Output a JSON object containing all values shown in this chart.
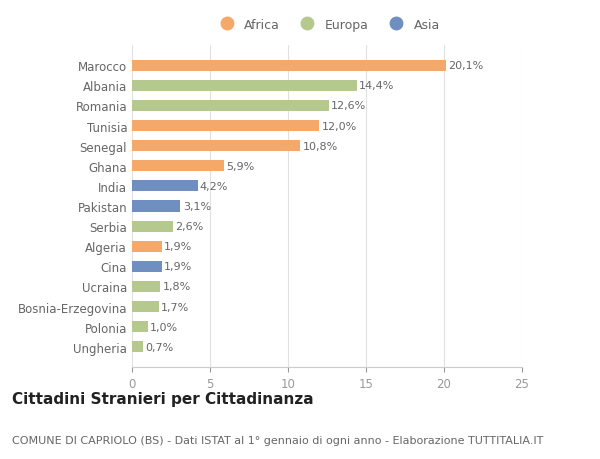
{
  "categories": [
    "Ungheria",
    "Polonia",
    "Bosnia-Erzegovina",
    "Ucraina",
    "Cina",
    "Algeria",
    "Serbia",
    "Pakistan",
    "India",
    "Ghana",
    "Senegal",
    "Tunisia",
    "Romania",
    "Albania",
    "Marocco"
  ],
  "values": [
    0.7,
    1.0,
    1.7,
    1.8,
    1.9,
    1.9,
    2.6,
    3.1,
    4.2,
    5.9,
    10.8,
    12.0,
    12.6,
    14.4,
    20.1
  ],
  "labels": [
    "0,7%",
    "1,0%",
    "1,7%",
    "1,8%",
    "1,9%",
    "1,9%",
    "2,6%",
    "3,1%",
    "4,2%",
    "5,9%",
    "10,8%",
    "12,0%",
    "12,6%",
    "14,4%",
    "20,1%"
  ],
  "continent": [
    "Europa",
    "Europa",
    "Europa",
    "Europa",
    "Asia",
    "Africa",
    "Europa",
    "Asia",
    "Asia",
    "Africa",
    "Africa",
    "Africa",
    "Europa",
    "Europa",
    "Africa"
  ],
  "color_africa": "#F4A96A",
  "color_europa": "#B5C98E",
  "color_asia": "#6E8FC0",
  "xlim": [
    0,
    25
  ],
  "xticks": [
    0,
    5,
    10,
    15,
    20,
    25
  ],
  "title": "Cittadini Stranieri per Cittadinanza",
  "subtitle": "COMUNE DI CAPRIOLO (BS) - Dati ISTAT al 1° gennaio di ogni anno - Elaborazione TUTTITALIA.IT",
  "background_color": "#ffffff",
  "bar_height": 0.55,
  "title_fontsize": 11,
  "subtitle_fontsize": 8,
  "label_fontsize": 8,
  "ytick_fontsize": 8.5,
  "xtick_fontsize": 8.5
}
